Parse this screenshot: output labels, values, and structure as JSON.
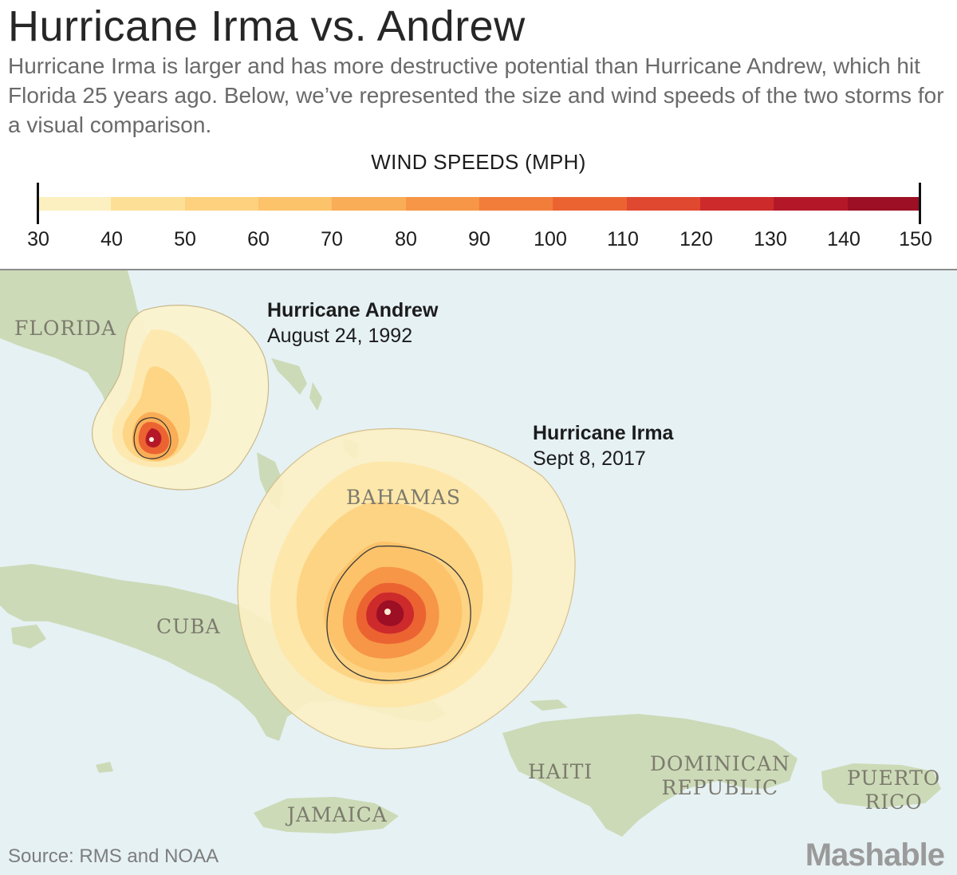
{
  "header": {
    "title": "Hurricane Irma vs. Andrew",
    "subtitle": "Hurricane Irma is larger and has more destructive potential than Hurricane Andrew, which hit Florida 25 years ago. Below, we’ve represented the size and wind speeds of the two storms for a visual comparison."
  },
  "legend": {
    "title": "WIND SPEEDS (MPH)",
    "ticks": [
      "30",
      "40",
      "50",
      "60",
      "70",
      "80",
      "90",
      "100",
      "110",
      "120",
      "130",
      "140",
      "150"
    ],
    "colors": [
      "#fdf0c0",
      "#fde8ac",
      "#fddf96",
      "#fdd17e",
      "#fcc36a",
      "#f9ad56",
      "#f69646",
      "#f27d3a",
      "#ec6332",
      "#e04830",
      "#cd2a2c",
      "#b41828",
      "#9c0f24"
    ]
  },
  "map": {
    "places": {
      "florida": "FLORIDA",
      "bahamas": "BAHAMAS",
      "cuba": "CUBA",
      "haiti": "HAITI",
      "dominican_line1": "DOMINICAN",
      "dominican_line2": "REPUBLIC",
      "puerto_line1": "PUERTO",
      "puerto_line2": "RICO",
      "jamaica": "JAMAICA"
    },
    "storms": {
      "andrew": {
        "name": "Hurricane Andrew",
        "date": "August 24, 1992"
      },
      "irma": {
        "name": "Hurricane Irma",
        "date": "Sept 8, 2017"
      }
    },
    "land_color": "#ccdab7",
    "water_color": "#e6f1f4"
  },
  "footer": {
    "source": "Source: RMS and NOAA",
    "logo": "Mashable"
  }
}
